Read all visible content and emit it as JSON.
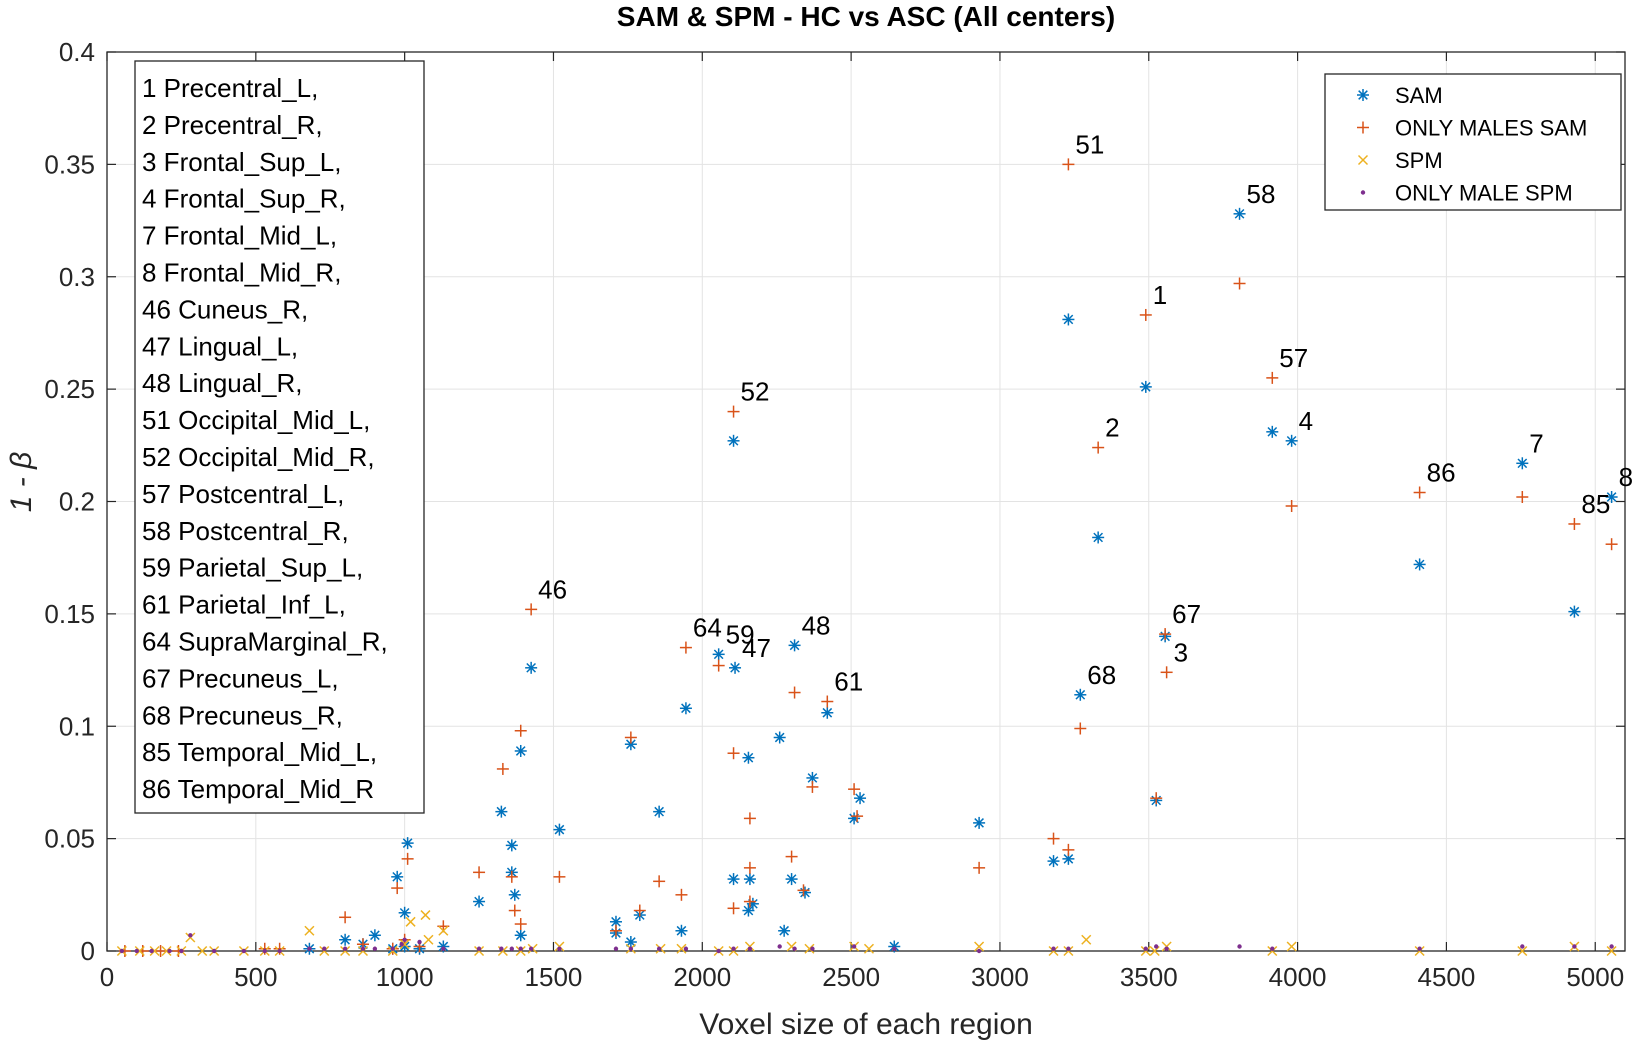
{
  "chart_data": {
    "type": "scatter",
    "title": "SAM & SPM - HC vs ASC (All centers)",
    "xlabel": "Voxel size of each region",
    "ylabel": "1 - β",
    "xlim": [
      0,
      5100
    ],
    "ylim": [
      0,
      0.4
    ],
    "grid": true,
    "x_ticks": [
      0,
      500,
      1000,
      1500,
      2000,
      2500,
      3000,
      3500,
      4000,
      4500,
      5000
    ],
    "y_ticks": [
      0,
      0.05,
      0.1,
      0.15,
      0.2,
      0.25,
      0.3,
      0.35,
      0.4
    ],
    "x_tick_labels": [
      "0",
      "500",
      "1000",
      "1500",
      "2000",
      "2500",
      "3000",
      "3500",
      "4000",
      "4500",
      "5000"
    ],
    "y_tick_labels": [
      "0",
      "0.05",
      "0.1",
      "0.15",
      "0.2",
      "0.25",
      "0.3",
      "0.35",
      "0.4"
    ],
    "legend_position": "top-right",
    "series": [
      {
        "name": "SAM",
        "marker": "asterisk",
        "color": "#0072BD",
        "points": [
          [
            3805,
            0.328
          ],
          [
            3230,
            0.281
          ],
          [
            3490,
            0.251
          ],
          [
            2105,
            0.227
          ],
          [
            3915,
            0.231
          ],
          [
            3980,
            0.227
          ],
          [
            4755,
            0.217
          ],
          [
            5055,
            0.202
          ],
          [
            3330,
            0.184
          ],
          [
            4410,
            0.172
          ],
          [
            4930,
            0.151
          ],
          [
            3555,
            0.14
          ],
          [
            2055,
            0.132
          ],
          [
            2110,
            0.126
          ],
          [
            2310,
            0.136
          ],
          [
            1425,
            0.126
          ],
          [
            3270,
            0.114
          ],
          [
            2420,
            0.106
          ],
          [
            1945,
            0.108
          ],
          [
            1760,
            0.092
          ],
          [
            2155,
            0.086
          ],
          [
            1390,
            0.089
          ],
          [
            2260,
            0.095
          ],
          [
            2370,
            0.077
          ],
          [
            2530,
            0.068
          ],
          [
            3525,
            0.067
          ],
          [
            1325,
            0.062
          ],
          [
            1855,
            0.062
          ],
          [
            2510,
            0.059
          ],
          [
            2930,
            0.057
          ],
          [
            1520,
            0.054
          ],
          [
            1010,
            0.048
          ],
          [
            1360,
            0.047
          ],
          [
            3230,
            0.041
          ],
          [
            3180,
            0.04
          ],
          [
            1360,
            0.035
          ],
          [
            975,
            0.033
          ],
          [
            2105,
            0.032
          ],
          [
            2160,
            0.032
          ],
          [
            2300,
            0.032
          ],
          [
            2345,
            0.026
          ],
          [
            1370,
            0.025
          ],
          [
            1250,
            0.022
          ],
          [
            2170,
            0.021
          ],
          [
            2155,
            0.018
          ],
          [
            1000,
            0.017
          ],
          [
            1790,
            0.016
          ],
          [
            1710,
            0.013
          ],
          [
            1930,
            0.009
          ],
          [
            2275,
            0.009
          ],
          [
            1710,
            0.008
          ],
          [
            1390,
            0.007
          ],
          [
            900,
            0.007
          ],
          [
            800,
            0.005
          ],
          [
            1760,
            0.004
          ],
          [
            860,
            0.003
          ],
          [
            1000,
            0.002
          ],
          [
            1130,
            0.002
          ],
          [
            2645,
            0.002
          ],
          [
            1050,
            0.001
          ],
          [
            960,
            0.001
          ],
          [
            680,
            0.001
          ]
        ]
      },
      {
        "name": "ONLY MALES SAM",
        "marker": "plus",
        "color": "#D95319",
        "points": [
          [
            3230,
            0.35
          ],
          [
            3805,
            0.297
          ],
          [
            3490,
            0.283
          ],
          [
            3915,
            0.255
          ],
          [
            2105,
            0.24
          ],
          [
            3330,
            0.224
          ],
          [
            4410,
            0.204
          ],
          [
            4755,
            0.202
          ],
          [
            3980,
            0.198
          ],
          [
            4930,
            0.19
          ],
          [
            5055,
            0.181
          ],
          [
            1425,
            0.152
          ],
          [
            3555,
            0.141
          ],
          [
            1945,
            0.135
          ],
          [
            2055,
            0.127
          ],
          [
            3560,
            0.124
          ],
          [
            2310,
            0.115
          ],
          [
            2420,
            0.111
          ],
          [
            3270,
            0.099
          ],
          [
            1390,
            0.098
          ],
          [
            1760,
            0.095
          ],
          [
            2105,
            0.088
          ],
          [
            1330,
            0.081
          ],
          [
            2370,
            0.073
          ],
          [
            2510,
            0.072
          ],
          [
            3525,
            0.068
          ],
          [
            2520,
            0.06
          ],
          [
            2160,
            0.059
          ],
          [
            3180,
            0.05
          ],
          [
            3230,
            0.045
          ],
          [
            2300,
            0.042
          ],
          [
            1010,
            0.041
          ],
          [
            2160,
            0.037
          ],
          [
            2930,
            0.037
          ],
          [
            1250,
            0.035
          ],
          [
            1360,
            0.033
          ],
          [
            1520,
            0.033
          ],
          [
            1855,
            0.031
          ],
          [
            975,
            0.028
          ],
          [
            1930,
            0.025
          ],
          [
            2340,
            0.027
          ],
          [
            2160,
            0.022
          ],
          [
            2105,
            0.019
          ],
          [
            1790,
            0.018
          ],
          [
            1370,
            0.018
          ],
          [
            800,
            0.015
          ],
          [
            1390,
            0.012
          ],
          [
            1130,
            0.011
          ],
          [
            1710,
            0.009
          ],
          [
            1000,
            0.005
          ],
          [
            860,
            0.003
          ],
          [
            1050,
            0.002
          ],
          [
            960,
            0.001
          ],
          [
            580,
            0.001
          ],
          [
            530,
            0.001
          ],
          [
            240,
            0.0
          ],
          [
            180,
            0.0
          ],
          [
            120,
            0.0
          ],
          [
            60,
            0.0
          ]
        ]
      },
      {
        "name": "SPM",
        "marker": "x",
        "color": "#EDB120",
        "points": [
          [
            680,
            0.009
          ],
          [
            1070,
            0.016
          ],
          [
            1020,
            0.013
          ],
          [
            1130,
            0.009
          ],
          [
            1080,
            0.005
          ],
          [
            280,
            0.006
          ],
          [
            1000,
            0.003
          ],
          [
            3290,
            0.005
          ],
          [
            1520,
            0.002
          ],
          [
            2930,
            0.002
          ],
          [
            3980,
            0.002
          ],
          [
            3560,
            0.002
          ],
          [
            4930,
            0.002
          ],
          [
            2160,
            0.002
          ],
          [
            2300,
            0.002
          ],
          [
            2510,
            0.002
          ],
          [
            1430,
            0.001
          ],
          [
            1760,
            0.001
          ],
          [
            1860,
            0.001
          ],
          [
            1930,
            0.001
          ],
          [
            2360,
            0.001
          ],
          [
            2560,
            0.001
          ],
          [
            3180,
            0.0
          ],
          [
            3230,
            0.0
          ],
          [
            3490,
            0.0
          ],
          [
            3520,
            0.0
          ],
          [
            3915,
            0.0
          ],
          [
            4410,
            0.0
          ],
          [
            4755,
            0.0
          ],
          [
            5055,
            0.0
          ],
          [
            2105,
            0.0
          ],
          [
            2055,
            0.0
          ],
          [
            1390,
            0.0
          ],
          [
            1330,
            0.0
          ],
          [
            1250,
            0.0
          ],
          [
            960,
            0.0
          ],
          [
            860,
            0.0
          ],
          [
            800,
            0.0
          ],
          [
            730,
            0.0
          ],
          [
            580,
            0.0
          ],
          [
            530,
            0.0
          ],
          [
            460,
            0.0
          ],
          [
            360,
            0.0
          ],
          [
            320,
            0.0
          ],
          [
            250,
            0.0
          ],
          [
            200,
            0.0
          ],
          [
            160,
            0.0
          ],
          [
            110,
            0.0
          ],
          [
            50,
            0.0
          ]
        ]
      },
      {
        "name": "ONLY MALE SPM",
        "marker": "dot",
        "color": "#7E2F8E",
        "points": [
          [
            1050,
            0.004
          ],
          [
            280,
            0.007
          ],
          [
            1000,
            0.005
          ],
          [
            990,
            0.003
          ],
          [
            3525,
            0.002
          ],
          [
            3805,
            0.002
          ],
          [
            3915,
            0.001
          ],
          [
            4755,
            0.002
          ],
          [
            5055,
            0.002
          ],
          [
            4410,
            0.001
          ],
          [
            4930,
            0.002
          ],
          [
            3490,
            0.001
          ],
          [
            3560,
            0.001
          ],
          [
            3230,
            0.001
          ],
          [
            3180,
            0.001
          ],
          [
            2930,
            0.0
          ],
          [
            2645,
            0.001
          ],
          [
            2510,
            0.002
          ],
          [
            2370,
            0.001
          ],
          [
            2310,
            0.001
          ],
          [
            2260,
            0.002
          ],
          [
            2160,
            0.001
          ],
          [
            2105,
            0.001
          ],
          [
            2055,
            0.0
          ],
          [
            1945,
            0.001
          ],
          [
            1855,
            0.001
          ],
          [
            1760,
            0.001
          ],
          [
            1710,
            0.001
          ],
          [
            1520,
            0.001
          ],
          [
            1425,
            0.001
          ],
          [
            1390,
            0.001
          ],
          [
            1360,
            0.001
          ],
          [
            1325,
            0.001
          ],
          [
            1250,
            0.001
          ],
          [
            1130,
            0.001
          ],
          [
            960,
            0.001
          ],
          [
            900,
            0.001
          ],
          [
            860,
            0.001
          ],
          [
            800,
            0.001
          ],
          [
            730,
            0.001
          ],
          [
            680,
            0.001
          ],
          [
            580,
            0.0
          ],
          [
            530,
            0.0
          ],
          [
            460,
            0.0
          ],
          [
            360,
            0.0
          ],
          [
            250,
            0.0
          ],
          [
            210,
            0.0
          ],
          [
            150,
            0.0
          ],
          [
            100,
            0.0
          ],
          [
            50,
            0.0
          ]
        ]
      }
    ],
    "point_labels": [
      {
        "text": "51",
        "x": 3230,
        "y": 0.35
      },
      {
        "text": "58",
        "x": 3805,
        "y": 0.328
      },
      {
        "text": "1",
        "x": 3490,
        "y": 0.283
      },
      {
        "text": "57",
        "x": 3915,
        "y": 0.255
      },
      {
        "text": "52",
        "x": 2105,
        "y": 0.24
      },
      {
        "text": "2",
        "x": 3330,
        "y": 0.224
      },
      {
        "text": "4",
        "x": 3980,
        "y": 0.227
      },
      {
        "text": "7",
        "x": 4755,
        "y": 0.217
      },
      {
        "text": "86",
        "x": 4410,
        "y": 0.204
      },
      {
        "text": "8",
        "x": 5055,
        "y": 0.202
      },
      {
        "text": "85",
        "x": 4930,
        "y": 0.19
      },
      {
        "text": "46",
        "x": 1425,
        "y": 0.152
      },
      {
        "text": "67",
        "x": 3555,
        "y": 0.141
      },
      {
        "text": "64",
        "x": 1945,
        "y": 0.135
      },
      {
        "text": "59",
        "x": 2055,
        "y": 0.132
      },
      {
        "text": "48",
        "x": 2310,
        "y": 0.136
      },
      {
        "text": "3",
        "x": 3560,
        "y": 0.124
      },
      {
        "text": "47",
        "x": 2110,
        "y": 0.126
      },
      {
        "text": "68",
        "x": 3270,
        "y": 0.114
      },
      {
        "text": "61",
        "x": 2420,
        "y": 0.111
      }
    ],
    "region_list": [
      "1 Precentral_L,",
      "2 Precentral_R,",
      "3 Frontal_Sup_L,",
      "4 Frontal_Sup_R,",
      "7 Frontal_Mid_L,",
      "8 Frontal_Mid_R,",
      "46 Cuneus_R,",
      "47 Lingual_L,",
      "48 Lingual_R,",
      "51 Occipital_Mid_L,",
      "52 Occipital_Mid_R,",
      "57 Postcentral_L,",
      "58 Postcentral_R,",
      "59 Parietal_Sup_L,",
      "61 Parietal_Inf_L,",
      "64 SupraMarginal_R,",
      "67 Precuneus_L,",
      "68 Precuneus_R,",
      "85 Temporal_Mid_L,",
      "86 Temporal_Mid_R"
    ]
  }
}
